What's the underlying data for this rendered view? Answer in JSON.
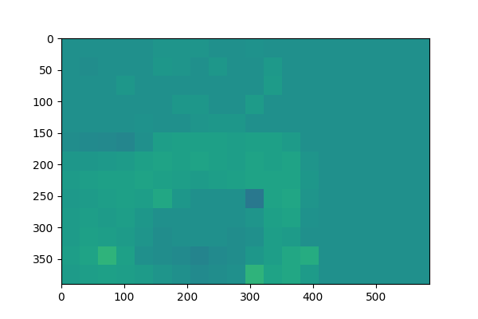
{
  "chart_data": {
    "type": "heatmap",
    "color": "viridis",
    "color_range": [
      0,
      1
    ],
    "xlim": [
      -0.5,
      584.5
    ],
    "ylim": [
      389.5,
      -0.5
    ],
    "xticks": [
      0,
      100,
      200,
      300,
      400,
      500
    ],
    "yticks": [
      0,
      50,
      100,
      150,
      200,
      250,
      300,
      350
    ],
    "cells": [
      [
        0.5,
        0.5,
        0.5,
        0.5,
        0.5,
        0.52,
        0.52,
        0.52,
        0.5,
        0.5,
        0.51,
        0.5,
        0.5,
        0.5,
        0.5,
        0.5,
        0.5,
        0.5,
        0.5,
        0.5
      ],
      [
        0.5,
        0.49,
        0.5,
        0.5,
        0.5,
        0.53,
        0.52,
        0.5,
        0.53,
        0.5,
        0.5,
        0.54,
        0.5,
        0.5,
        0.5,
        0.5,
        0.5,
        0.5,
        0.5,
        0.5
      ],
      [
        0.5,
        0.5,
        0.5,
        0.53,
        0.5,
        0.5,
        0.5,
        0.5,
        0.5,
        0.5,
        0.5,
        0.55,
        0.5,
        0.5,
        0.5,
        0.5,
        0.5,
        0.5,
        0.5,
        0.5
      ],
      [
        0.5,
        0.5,
        0.5,
        0.5,
        0.5,
        0.5,
        0.53,
        0.53,
        0.5,
        0.5,
        0.55,
        0.5,
        0.5,
        0.5,
        0.5,
        0.5,
        0.5,
        0.5,
        0.5,
        0.5
      ],
      [
        0.5,
        0.5,
        0.5,
        0.5,
        0.51,
        0.5,
        0.5,
        0.52,
        0.53,
        0.53,
        0.5,
        0.5,
        0.5,
        0.5,
        0.5,
        0.5,
        0.5,
        0.5,
        0.5,
        0.5
      ],
      [
        0.49,
        0.48,
        0.47,
        0.46,
        0.5,
        0.56,
        0.57,
        0.57,
        0.57,
        0.56,
        0.57,
        0.57,
        0.55,
        0.5,
        0.5,
        0.5,
        0.5,
        0.5,
        0.5,
        0.5
      ],
      [
        0.53,
        0.53,
        0.54,
        0.55,
        0.57,
        0.58,
        0.57,
        0.58,
        0.57,
        0.56,
        0.58,
        0.57,
        0.58,
        0.52,
        0.5,
        0.5,
        0.5,
        0.5,
        0.5,
        0.5
      ],
      [
        0.55,
        0.56,
        0.57,
        0.57,
        0.58,
        0.57,
        0.56,
        0.55,
        0.56,
        0.57,
        0.58,
        0.58,
        0.58,
        0.53,
        0.5,
        0.5,
        0.5,
        0.5,
        0.5,
        0.5
      ],
      [
        0.54,
        0.55,
        0.56,
        0.57,
        0.56,
        0.6,
        0.53,
        0.5,
        0.5,
        0.5,
        0.4,
        0.58,
        0.59,
        0.52,
        0.5,
        0.5,
        0.5,
        0.5,
        0.5,
        0.5
      ],
      [
        0.55,
        0.56,
        0.55,
        0.56,
        0.53,
        0.5,
        0.5,
        0.5,
        0.5,
        0.5,
        0.52,
        0.57,
        0.58,
        0.51,
        0.5,
        0.5,
        0.5,
        0.5,
        0.5,
        0.5
      ],
      [
        0.55,
        0.57,
        0.56,
        0.55,
        0.52,
        0.49,
        0.5,
        0.5,
        0.5,
        0.49,
        0.5,
        0.56,
        0.55,
        0.5,
        0.5,
        0.5,
        0.5,
        0.5,
        0.5,
        0.5
      ],
      [
        0.56,
        0.58,
        0.65,
        0.57,
        0.5,
        0.49,
        0.48,
        0.45,
        0.48,
        0.49,
        0.53,
        0.56,
        0.6,
        0.62,
        0.5,
        0.5,
        0.5,
        0.5,
        0.5,
        0.5
      ],
      [
        0.55,
        0.56,
        0.57,
        0.56,
        0.55,
        0.52,
        0.5,
        0.48,
        0.49,
        0.5,
        0.65,
        0.58,
        0.6,
        0.55,
        0.5,
        0.5,
        0.5,
        0.5,
        0.5,
        0.5
      ]
    ]
  }
}
